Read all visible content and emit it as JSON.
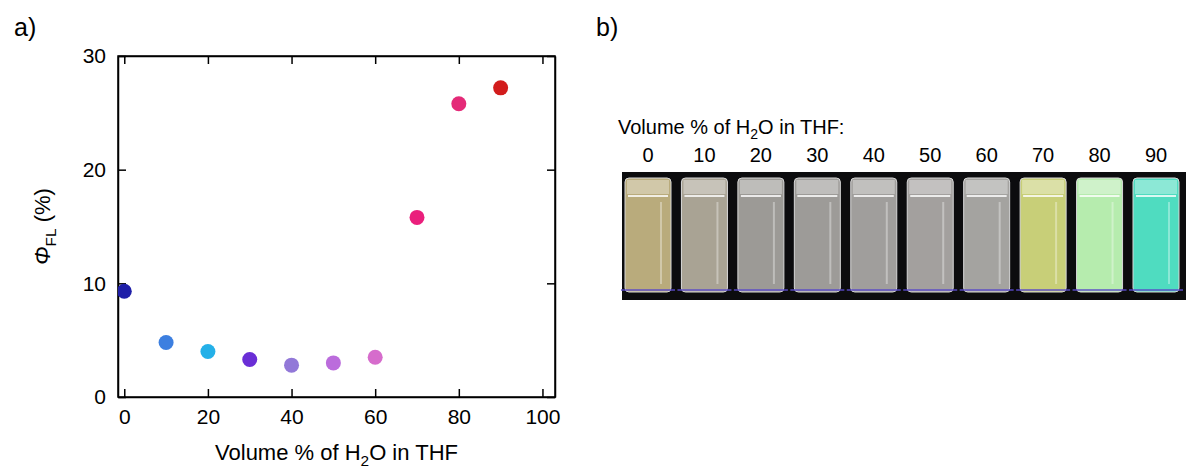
{
  "chart_data": {
    "type": "scatter",
    "panel": "a)",
    "x_label": [
      "Volume % of H",
      "2",
      "O in THF"
    ],
    "y_label": [
      "Φ",
      "FL",
      " (%)"
    ],
    "x": [
      0,
      10,
      20,
      30,
      40,
      50,
      60,
      70,
      80,
      90
    ],
    "values": [
      9.3,
      4.8,
      4.0,
      3.3,
      2.8,
      3.0,
      3.5,
      15.8,
      25.8,
      27.2
    ],
    "colors": [
      "#1f1fa8",
      "#3c7fe0",
      "#24b0e8",
      "#6a2ed6",
      "#9278d8",
      "#bb6cdc",
      "#d66ccc",
      "#ea1f7c",
      "#e42a78",
      "#d21c1c"
    ],
    "marker": "circle",
    "xlim": [
      -1.5,
      103
    ],
    "xticks": [
      0,
      20,
      40,
      60,
      80,
      100
    ],
    "ylim": [
      0,
      30
    ],
    "yticks": [
      0,
      10,
      20,
      30
    ],
    "grid": false
  },
  "photo": {
    "panel": "b)",
    "caption": [
      "Volume % of H",
      "2",
      "O in THF:"
    ],
    "labels": [
      0,
      10,
      20,
      30,
      40,
      50,
      60,
      70,
      80,
      90
    ],
    "colors": [
      "#b9ab7c",
      "#a9a394",
      "#9c9a96",
      "#9d9b98",
      "#a09e9c",
      "#a3a09e",
      "#a4a3a0",
      "#c8cf78",
      "#b6ecae",
      "#4fdcc0"
    ]
  }
}
